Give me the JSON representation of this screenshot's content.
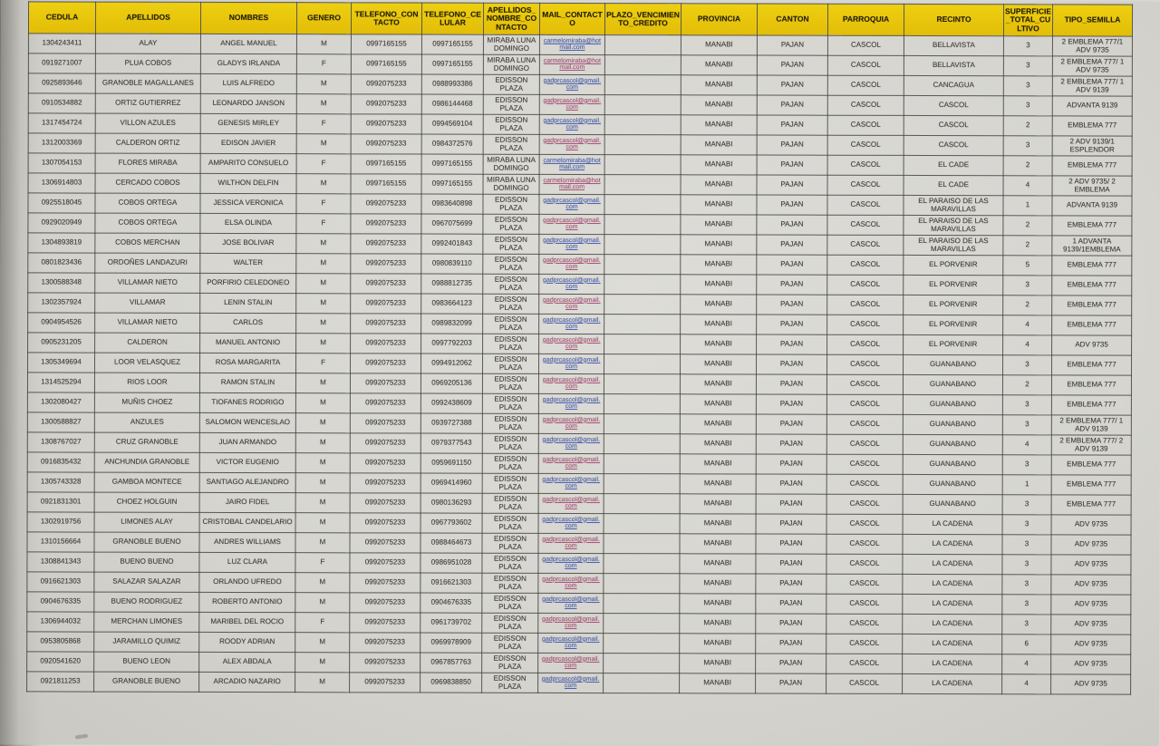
{
  "colors": {
    "header_bg": "#e9c60e",
    "paper": "#d8d7d2",
    "grid_border": "#3a3932",
    "link_blue": "#4a62b8",
    "link_rose": "#b0527c"
  },
  "table": {
    "columns": [
      {
        "key": "cedula",
        "label": "CEDULA"
      },
      {
        "key": "apellidos",
        "label": "APELLIDOS"
      },
      {
        "key": "nombres",
        "label": "NOMBRES"
      },
      {
        "key": "genero",
        "label": "GENERO"
      },
      {
        "key": "telefono_contacto",
        "label": "TELEFONO_CONTACTO"
      },
      {
        "key": "telefono_celular",
        "label": "TELEFONO_CELULAR"
      },
      {
        "key": "apellidos_nombre_contacto",
        "label": "APELLIDOS_NOMBRE_CONTACTO"
      },
      {
        "key": "mail_contacto",
        "label": "MAIL_CONTACTO"
      },
      {
        "key": "plazo_vencimiento_credito",
        "label": "PLAZO_VENCIMIENTO_CREDITO"
      },
      {
        "key": "provincia",
        "label": "PROVINCIA"
      },
      {
        "key": "canton",
        "label": "CANTON"
      },
      {
        "key": "parroquia",
        "label": "PARROQUIA"
      },
      {
        "key": "recinto",
        "label": "RECINTO"
      },
      {
        "key": "superficie_total_cultivo",
        "label": "SUPERFICIE_TOTAL_CULTIVO"
      },
      {
        "key": "tipo_semilla",
        "label": "TIPO_SEMILLA"
      }
    ],
    "rows": [
      [
        "1304243411",
        "ALAY",
        "ANGEL MANUEL",
        "M",
        "0997165155",
        "0997165155",
        "MIRABA LUNA DOMINGO",
        "carmelomiraba@hotmail.com",
        "",
        "MANABI",
        "PAJAN",
        "CASCOL",
        "BELLAVISTA",
        "3",
        "2 EMBLEMA 777/1 ADV 9735"
      ],
      [
        "0919271007",
        "PLUA COBOS",
        "GLADYS IRLANDA",
        "F",
        "0997165155",
        "0997165155",
        "MIRABA LUNA DOMINGO",
        "carmelomiraba@hotmail.com",
        "",
        "MANABI",
        "PAJAN",
        "CASCOL",
        "BELLAVISTA",
        "3",
        "2 EMBLEMA 777/ 1 ADV 9735"
      ],
      [
        "0925893646",
        "GRANOBLE MAGALLANES",
        "LUIS ALFREDO",
        "M",
        "0992075233",
        "0988993386",
        "EDISSON PLAZA",
        "gadprcascol@gmail.com",
        "",
        "MANABI",
        "PAJAN",
        "CASCOL",
        "CANCAGUA",
        "3",
        "2 EMBLEMA 777/ 1 ADV 9139"
      ],
      [
        "0910534882",
        "ORTIZ GUTIERREZ",
        "LEONARDO JANSON",
        "M",
        "0992075233",
        "0986144468",
        "EDISSON PLAZA",
        "gadprcascol@gmail.com",
        "",
        "MANABI",
        "PAJAN",
        "CASCOL",
        "CASCOL",
        "3",
        "ADVANTA 9139"
      ],
      [
        "1317454724",
        "VILLON AZULES",
        "GENESIS MIRLEY",
        "F",
        "0992075233",
        "0994569104",
        "EDISSON PLAZA",
        "gadprcascol@gmail.com",
        "",
        "MANABI",
        "PAJAN",
        "CASCOL",
        "CASCOL",
        "2",
        "EMBLEMA 777"
      ],
      [
        "1312003369",
        "CALDERON ORTIZ",
        "EDISON JAVIER",
        "M",
        "0992075233",
        "0984372576",
        "EDISSON PLAZA",
        "gadprcascol@gmail.com",
        "",
        "MANABI",
        "PAJAN",
        "CASCOL",
        "CASCOL",
        "3",
        "2 ADV 9139/1 ESPLENDOR"
      ],
      [
        "1307054153",
        "FLORES MIRABA",
        "AMPARITO CONSUELO",
        "F",
        "0997165155",
        "0997165155",
        "MIRABA LUNA DOMINGO",
        "carmelomiraba@hotmail.com",
        "",
        "MANABI",
        "PAJAN",
        "CASCOL",
        "EL CADE",
        "2",
        "EMBLEMA 777"
      ],
      [
        "1306914803",
        "CERCADO COBOS",
        "WILTHON DELFIN",
        "M",
        "0997165155",
        "0997165155",
        "MIRABA LUNA DOMINGO",
        "carmelomiraba@hotmail.com",
        "",
        "MANABI",
        "PAJAN",
        "CASCOL",
        "EL CADE",
        "4",
        "2 ADV 9735/ 2 EMBLEMA"
      ],
      [
        "0925518045",
        "COBOS ORTEGA",
        "JESSICA VERONICA",
        "F",
        "0992075233",
        "0983640898",
        "EDISSON PLAZA",
        "gadprcascol@gmail.com",
        "",
        "MANABI",
        "PAJAN",
        "CASCOL",
        "EL PARAISO DE LAS MARAVILLAS",
        "1",
        "ADVANTA 9139"
      ],
      [
        "0929020949",
        "COBOS ORTEGA",
        "ELSA OLINDA",
        "F",
        "0992075233",
        "0967075699",
        "EDISSON PLAZA",
        "gadprcascol@gmail.com",
        "",
        "MANABI",
        "PAJAN",
        "CASCOL",
        "EL PARAISO DE LAS MARAVILLAS",
        "2",
        "EMBLEMA 777"
      ],
      [
        "1304893819",
        "COBOS MERCHAN",
        "JOSE BOLIVAR",
        "M",
        "0992075233",
        "0992401843",
        "EDISSON PLAZA",
        "gadprcascol@gmail.com",
        "",
        "MANABI",
        "PAJAN",
        "CASCOL",
        "EL PARAISO DE LAS MARAVILLAS",
        "2",
        "1 ADVANTA 9139/1EMBLEMA"
      ],
      [
        "0801823436",
        "ORDOÑES LANDAZURI",
        "WALTER",
        "M",
        "0992075233",
        "0980839110",
        "EDISSON PLAZA",
        "gadprcascol@gmail.com",
        "",
        "MANABI",
        "PAJAN",
        "CASCOL",
        "EL PORVENIR",
        "5",
        "EMBLEMA 777"
      ],
      [
        "1300588348",
        "VILLAMAR NIETO",
        "PORFIRIO CELEDONEO",
        "M",
        "0992075233",
        "0988812735",
        "EDISSON PLAZA",
        "gadprcascol@gmail.com",
        "",
        "MANABI",
        "PAJAN",
        "CASCOL",
        "EL PORVENIR",
        "3",
        "EMBLEMA 777"
      ],
      [
        "1302357924",
        "VILLAMAR",
        "LENIN STALIN",
        "M",
        "0992075233",
        "0983664123",
        "EDISSON PLAZA",
        "gadprcascol@gmail.com",
        "",
        "MANABI",
        "PAJAN",
        "CASCOL",
        "EL PORVENIR",
        "2",
        "EMBLEMA 777"
      ],
      [
        "0904954526",
        "VILLAMAR NIETO",
        "CARLOS",
        "M",
        "0992075233",
        "0989832099",
        "EDISSON PLAZA",
        "gadprcascol@gmail.com",
        "",
        "MANABI",
        "PAJAN",
        "CASCOL",
        "EL PORVENIR",
        "4",
        "EMBLEMA 777"
      ],
      [
        "0905231205",
        "CALDERON",
        "MANUEL ANTONIO",
        "M",
        "0992075233",
        "0997792203",
        "EDISSON PLAZA",
        "gadprcascol@gmail.com",
        "",
        "MANABI",
        "PAJAN",
        "CASCOL",
        "EL PORVENIR",
        "4",
        "ADV 9735"
      ],
      [
        "1305349694",
        "LOOR VELASQUEZ",
        "ROSA MARGARITA",
        "F",
        "0992075233",
        "0994912062",
        "EDISSON PLAZA",
        "gadprcascol@gmail.com",
        "",
        "MANABI",
        "PAJAN",
        "CASCOL",
        "GUANABANO",
        "3",
        "EMBLEMA 777"
      ],
      [
        "1314525294",
        "RIOS LOOR",
        "RAMON STALIN",
        "M",
        "0992075233",
        "0969205136",
        "EDISSON PLAZA",
        "gadprcascol@gmail.com",
        "",
        "MANABI",
        "PAJAN",
        "CASCOL",
        "GUANABANO",
        "2",
        "EMBLEMA 777"
      ],
      [
        "1302080427",
        "MUÑIS CHOEZ",
        "TIOFANES RODRIGO",
        "M",
        "0992075233",
        "0992438609",
        "EDISSON PLAZA",
        "gadprcascol@gmail.com",
        "",
        "MANABI",
        "PAJAN",
        "CASCOL",
        "GUANABANO",
        "3",
        "EMBLEMA 777"
      ],
      [
        "1300588827",
        "ANZULES",
        "SALOMON WENCESLAO",
        "M",
        "0992075233",
        "0939727388",
        "EDISSON PLAZA",
        "gadprcascol@gmail.com",
        "",
        "MANABI",
        "PAJAN",
        "CASCOL",
        "GUANABANO",
        "3",
        "2 EMBLEMA 777/ 1 ADV 9139"
      ],
      [
        "1308767027",
        "CRUZ GRANOBLE",
        "JUAN ARMANDO",
        "M",
        "0992075233",
        "0979377543",
        "EDISSON PLAZA",
        "gadprcascol@gmail.com",
        "",
        "MANABI",
        "PAJAN",
        "CASCOL",
        "GUANABANO",
        "4",
        "2 EMBLEMA 777/ 2 ADV 9139"
      ],
      [
        "0916835432",
        "ANCHUNDIA GRANOBLE",
        "VICTOR EUGENIO",
        "M",
        "0992075233",
        "0959691150",
        "EDISSON PLAZA",
        "gadprcascol@gmail.com",
        "",
        "MANABI",
        "PAJAN",
        "CASCOL",
        "GUANABANO",
        "3",
        "EMBLEMA 777"
      ],
      [
        "1305743328",
        "GAMBOA MONTECE",
        "SANTIAGO ALEJANDRO",
        "M",
        "0992075233",
        "0969414960",
        "EDISSON PLAZA",
        "gadprcascol@gmail.com",
        "",
        "MANABI",
        "PAJAN",
        "CASCOL",
        "GUANABANO",
        "1",
        "EMBLEMA 777"
      ],
      [
        "0921831301",
        "CHOEZ HOLGUIN",
        "JAIRO FIDEL",
        "M",
        "0992075233",
        "0980136293",
        "EDISSON PLAZA",
        "gadprcascol@gmail.com",
        "",
        "MANABI",
        "PAJAN",
        "CASCOL",
        "GUANABANO",
        "3",
        "EMBLEMA 777"
      ],
      [
        "1302919756",
        "LIMONES ALAY",
        "CRISTOBAL CANDELARIO",
        "M",
        "0992075233",
        "0967793602",
        "EDISSON PLAZA",
        "gadprcascol@gmail.com",
        "",
        "MANABI",
        "PAJAN",
        "CASCOL",
        "LA CADENA",
        "3",
        "ADV 9735"
      ],
      [
        "1310156664",
        "GRANOBLE BUENO",
        "ANDRES WILLIAMS",
        "M",
        "0992075233",
        "0988464673",
        "EDISSON PLAZA",
        "gadprcascol@gmail.com",
        "",
        "MANABI",
        "PAJAN",
        "CASCOL",
        "LA CADENA",
        "3",
        "ADV 9735"
      ],
      [
        "1308841343",
        "BUENO BUENO",
        "LUZ CLARA",
        "F",
        "0992075233",
        "0986951028",
        "EDISSON PLAZA",
        "gadprcascol@gmail.com",
        "",
        "MANABI",
        "PAJAN",
        "CASCOL",
        "LA CADENA",
        "3",
        "ADV 9735"
      ],
      [
        "0916621303",
        "SALAZAR SALAZAR",
        "ORLANDO UFREDO",
        "M",
        "0992075233",
        "0916621303",
        "EDISSON PLAZA",
        "gadprcascol@gmail.com",
        "",
        "MANABI",
        "PAJAN",
        "CASCOL",
        "LA CADENA",
        "3",
        "ADV 9735"
      ],
      [
        "0904676335",
        "BUENO RODRIGUEZ",
        "ROBERTO ANTONIO",
        "M",
        "0992075233",
        "0904676335",
        "EDISSON PLAZA",
        "gadprcascol@gmail.com",
        "",
        "MANABI",
        "PAJAN",
        "CASCOL",
        "LA CADENA",
        "3",
        "ADV 9735"
      ],
      [
        "1306944032",
        "MERCHAN LIMONES",
        "MARIBEL DEL ROCIO",
        "F",
        "0992075233",
        "0961739702",
        "EDISSON PLAZA",
        "gadprcascol@gmail.com",
        "",
        "MANABI",
        "PAJAN",
        "CASCOL",
        "LA CADENA",
        "3",
        "ADV 9735"
      ],
      [
        "0953805868",
        "JARAMILLO QUIMIZ",
        "ROODY ADRIAN",
        "M",
        "0992075233",
        "0969978909",
        "EDISSON PLAZA",
        "gadprcascol@gmail.com",
        "",
        "MANABI",
        "PAJAN",
        "CASCOL",
        "LA CADENA",
        "6",
        "ADV 9735"
      ],
      [
        "0920541620",
        "BUENO LEON",
        "ALEX ABDALA",
        "M",
        "0992075233",
        "0967857763",
        "EDISSON PLAZA",
        "gadprcascol@gmail.com",
        "",
        "MANABI",
        "PAJAN",
        "CASCOL",
        "LA CADENA",
        "4",
        "ADV 9735"
      ],
      [
        "0921811253",
        "GRANOBLE BUENO",
        "ARCADIO NAZARIO",
        "M",
        "0992075233",
        "0969838850",
        "EDISSON PLAZA",
        "gadprcascol@gmail.com",
        "",
        "MANABI",
        "PAJAN",
        "CASCOL",
        "LA CADENA",
        "4",
        "ADV 9735"
      ]
    ]
  }
}
